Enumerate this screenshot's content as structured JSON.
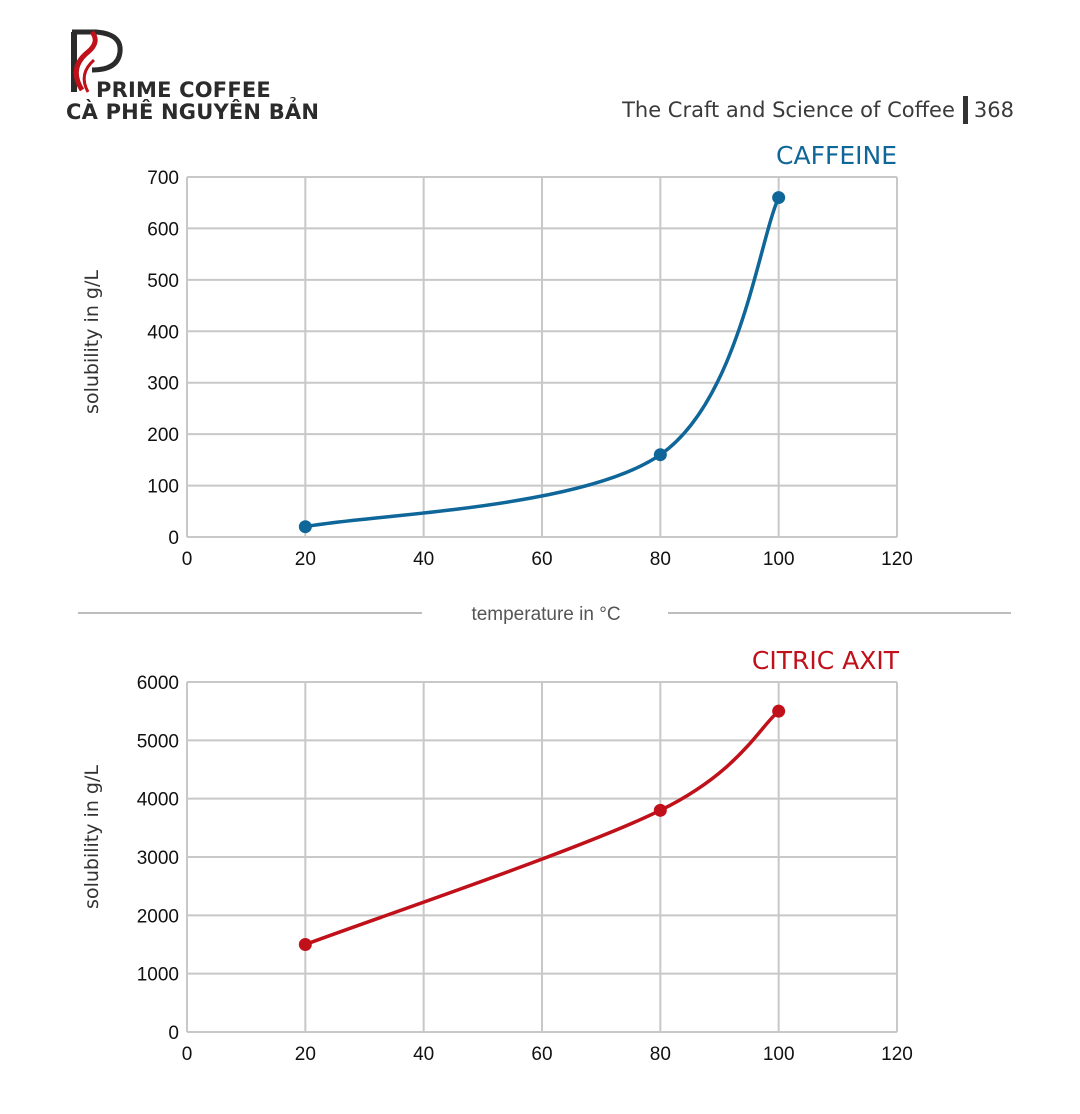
{
  "brand": {
    "name_line1": "PRIME COFFEE",
    "name_line2": "CÀ PHÊ NGUYÊN BẢN"
  },
  "header": {
    "book_title": "The Craft and Science of Coffee",
    "page_number": "368"
  },
  "shared_xlabel": "temperature in °C",
  "colors": {
    "caffeine": "#0e6699",
    "citric": "#c0101a",
    "grid": "#c8c8c8"
  },
  "chart_data": [
    {
      "type": "line",
      "title": "CAFFEINE",
      "ylabel": "solubility in g/L",
      "xlabel": "",
      "x_ticks": [
        "0",
        "20",
        "40",
        "60",
        "80",
        "100",
        "120"
      ],
      "y_ticks": [
        "0",
        "100",
        "200",
        "300",
        "400",
        "500",
        "600",
        "700"
      ],
      "xlim": [
        0,
        120
      ],
      "ylim": [
        0,
        700
      ],
      "grid": true,
      "series": [
        {
          "points": [
            {
              "x": 20,
              "y": 20
            },
            {
              "x": 80,
              "y": 160
            },
            {
              "x": 100,
              "y": 660
            }
          ]
        }
      ]
    },
    {
      "type": "line",
      "title": "CITRIC AXIT",
      "ylabel": "solubility in g/L",
      "xlabel": "",
      "x_ticks": [
        "0",
        "20",
        "40",
        "60",
        "80",
        "100",
        "120"
      ],
      "y_ticks": [
        "0",
        "1000",
        "2000",
        "3000",
        "4000",
        "5000",
        "6000"
      ],
      "xlim": [
        0,
        120
      ],
      "ylim": [
        0,
        6000
      ],
      "grid": true,
      "series": [
        {
          "points": [
            {
              "x": 20,
              "y": 1500
            },
            {
              "x": 80,
              "y": 3800
            },
            {
              "x": 100,
              "y": 5500
            }
          ]
        }
      ]
    }
  ]
}
